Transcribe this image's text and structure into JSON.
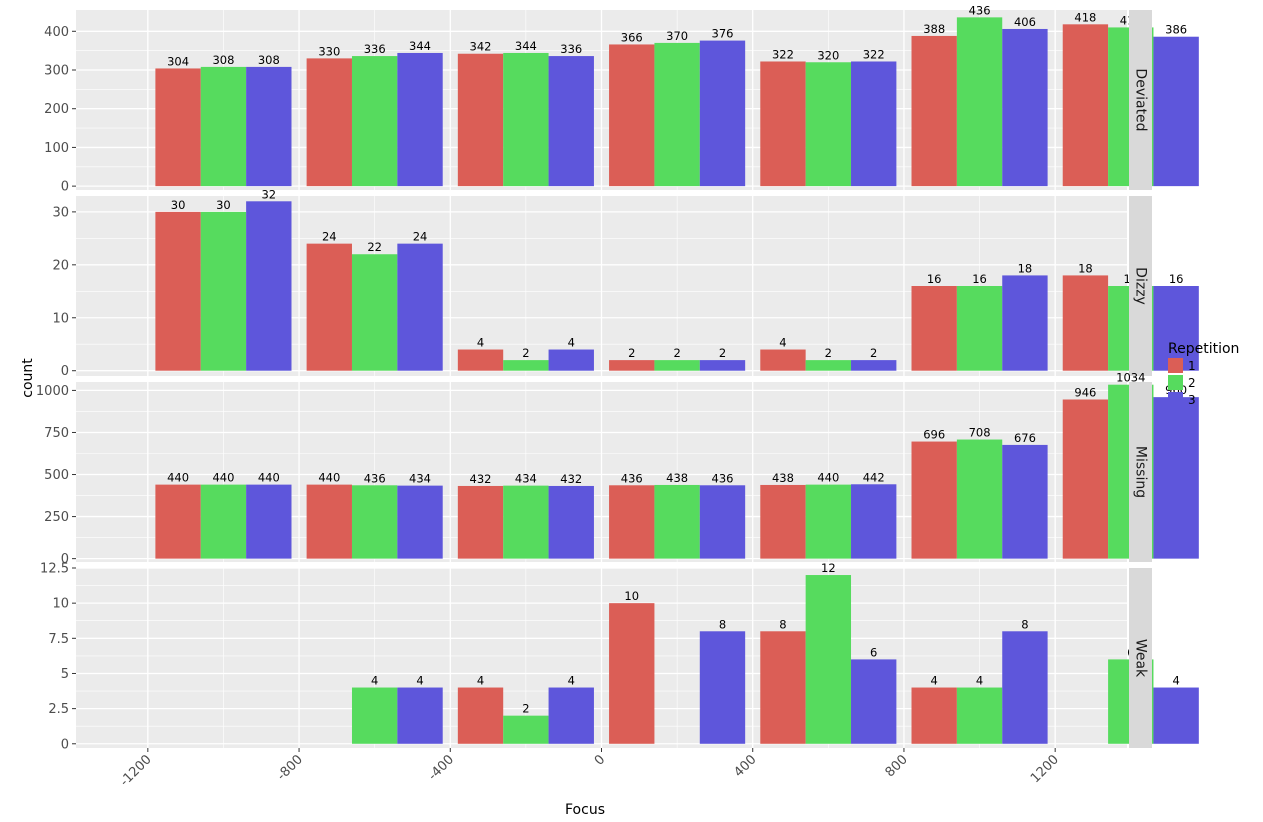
{
  "chart_data": {
    "type": "bar",
    "xlabel": "Focus",
    "ylabel": "count",
    "x_ticks": [
      -1200,
      -800,
      -400,
      0,
      400,
      800,
      1200
    ],
    "x_range": [
      -1390,
      1390
    ],
    "categories": [
      -1000,
      -600,
      -200,
      200,
      600,
      1000,
      1400
    ],
    "colors": {
      "1": "#db5e56",
      "2": "#56db5e",
      "3": "#5e56db"
    },
    "legend": {
      "title": "Repetition",
      "entries": [
        "1",
        "2",
        "3"
      ],
      "placement": "right"
    },
    "grid": true,
    "panels": [
      {
        "name": "Deviated",
        "ylim": [
          -10,
          455
        ],
        "y_ticks": [
          0,
          100,
          200,
          300,
          400
        ],
        "y_tick_labels": [
          "0",
          "100",
          "200",
          "300",
          "400"
        ],
        "series": [
          {
            "name": "1",
            "values": [
              304,
              330,
              342,
              366,
              322,
              388,
              418
            ]
          },
          {
            "name": "2",
            "values": [
              308,
              336,
              344,
              370,
              320,
              436,
              410
            ]
          },
          {
            "name": "3",
            "values": [
              308,
              344,
              336,
              376,
              322,
              406,
              386
            ]
          }
        ]
      },
      {
        "name": "Dizzy",
        "ylim": [
          -1,
          33
        ],
        "y_ticks": [
          0,
          10,
          20,
          30
        ],
        "y_tick_labels": [
          "0",
          "10",
          "20",
          "30"
        ],
        "series": [
          {
            "name": "1",
            "values": [
              30,
              24,
              4,
              2,
              4,
              16,
              18
            ]
          },
          {
            "name": "2",
            "values": [
              30,
              22,
              2,
              2,
              2,
              16,
              16
            ]
          },
          {
            "name": "3",
            "values": [
              32,
              24,
              4,
              2,
              2,
              18,
              16
            ]
          }
        ]
      },
      {
        "name": "Missing",
        "ylim": [
          -20,
          1050
        ],
        "y_ticks": [
          0,
          250,
          500,
          750,
          1000
        ],
        "y_tick_labels": [
          "0",
          "250",
          "500",
          "750",
          "1000"
        ],
        "series": [
          {
            "name": "1",
            "values": [
              440,
              440,
              432,
              436,
              438,
              696,
              946
            ]
          },
          {
            "name": "2",
            "values": [
              440,
              436,
              434,
              438,
              440,
              708,
              1034
            ]
          },
          {
            "name": "3",
            "values": [
              440,
              434,
              432,
              436,
              442,
              676,
              960
            ]
          }
        ]
      },
      {
        "name": "Weak",
        "ylim": [
          -0.3,
          12.5
        ],
        "y_ticks": [
          0,
          2.5,
          5,
          7.5,
          10,
          12.5
        ],
        "y_tick_labels": [
          "0",
          "2.5",
          "5",
          "7.5",
          "10",
          "12.5"
        ],
        "series": [
          {
            "name": "1",
            "values": [
              null,
              null,
              4,
              10,
              8,
              4,
              null
            ]
          },
          {
            "name": "2",
            "values": [
              null,
              4,
              2,
              null,
              12,
              4,
              6
            ]
          },
          {
            "name": "3",
            "values": [
              null,
              4,
              4,
              8,
              6,
              8,
              4
            ]
          }
        ]
      }
    ]
  }
}
